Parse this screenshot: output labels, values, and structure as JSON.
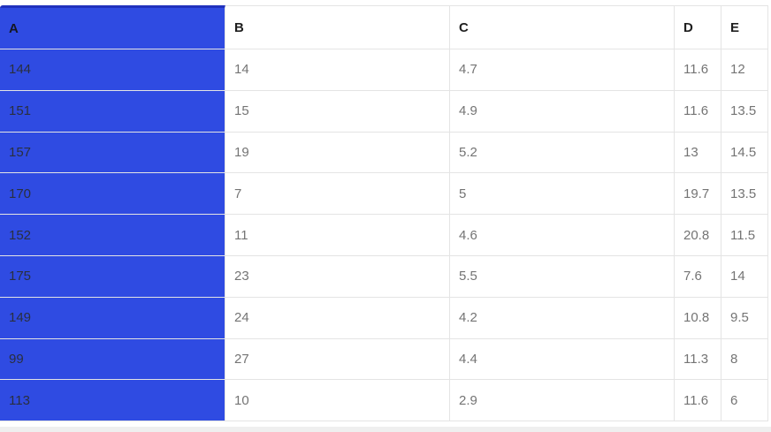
{
  "colors": {
    "selected_column_fill": "#2F4BE2",
    "selected_column_top_border": "#2132BD",
    "grid_border": "#E4E4E4",
    "header_text": "#1F1F1F",
    "cell_text": "#747474",
    "selected_cell_text": "#2A2F3E",
    "bottom_strip": "#EFEFEF"
  },
  "table": {
    "columns": [
      {
        "key": "A",
        "label": "A",
        "selected": true
      },
      {
        "key": "B",
        "label": "B",
        "selected": false
      },
      {
        "key": "C",
        "label": "C",
        "selected": false
      },
      {
        "key": "D",
        "label": "D",
        "selected": false
      },
      {
        "key": "E",
        "label": "E",
        "selected": false
      }
    ],
    "rows": [
      [
        "144",
        "14",
        "4.7",
        "11.6",
        "12"
      ],
      [
        "151",
        "15",
        "4.9",
        "11.6",
        "13.5"
      ],
      [
        "157",
        "19",
        "5.2",
        "13",
        "14.5"
      ],
      [
        "170",
        "7",
        "5",
        "19.7",
        "13.5"
      ],
      [
        "152",
        "11",
        "4.6",
        "20.8",
        "11.5"
      ],
      [
        "175",
        "23",
        "5.5",
        "7.6",
        "14"
      ],
      [
        "149",
        "24",
        "4.2",
        "10.8",
        "9.5"
      ],
      [
        "99",
        "27",
        "4.4",
        "11.3",
        "8"
      ],
      [
        "113",
        "10",
        "2.9",
        "11.6",
        "6"
      ]
    ]
  }
}
